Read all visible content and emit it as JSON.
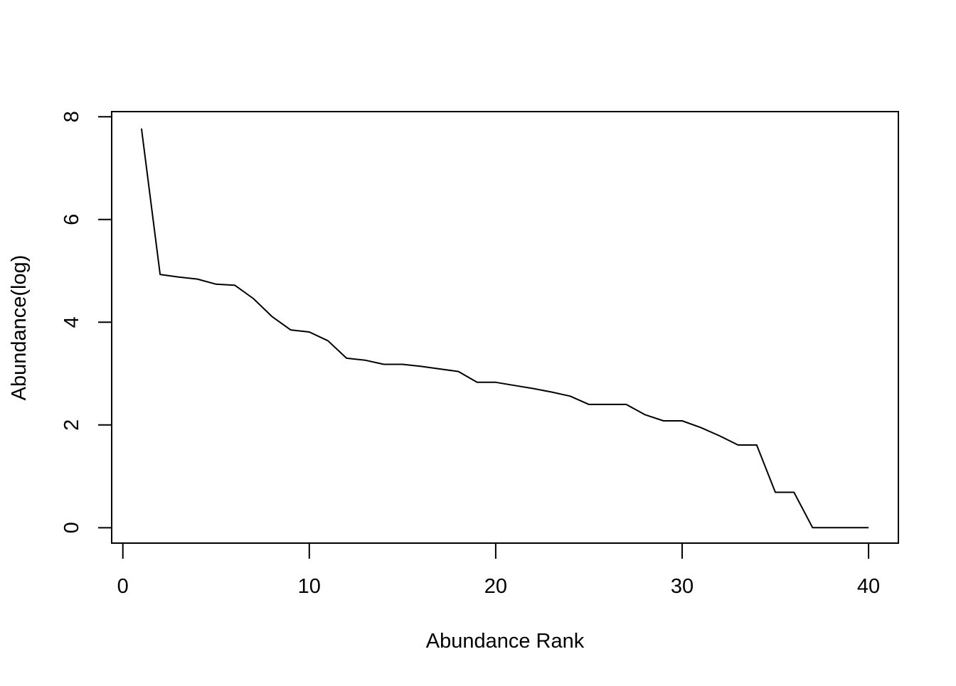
{
  "chart_data": {
    "type": "line",
    "title": "",
    "xlabel": "Abundance Rank",
    "ylabel": "Abundance(log)",
    "xlim": [
      -0.6,
      41.6
    ],
    "ylim": [
      -0.3,
      8.1
    ],
    "x_ticks": [
      0,
      10,
      20,
      30,
      40
    ],
    "y_ticks": [
      0,
      2,
      4,
      6,
      8
    ],
    "grid": false,
    "legend": "none",
    "line_color": "#000000",
    "series": [
      {
        "x": [
          1,
          2,
          3,
          4,
          5,
          6,
          7,
          8,
          9,
          10,
          11,
          12,
          13,
          14,
          15,
          16,
          17,
          18,
          19,
          20,
          21,
          22,
          23,
          24,
          25,
          26,
          27,
          28,
          29,
          30,
          31,
          32,
          33,
          34,
          35,
          36,
          37,
          38,
          39,
          40
        ],
        "values": [
          7.77,
          4.93,
          4.88,
          4.84,
          4.74,
          4.72,
          4.46,
          4.11,
          3.85,
          3.81,
          3.64,
          3.3,
          3.26,
          3.18,
          3.18,
          3.14,
          3.09,
          3.04,
          2.83,
          2.83,
          2.77,
          2.71,
          2.64,
          2.56,
          2.4,
          2.4,
          2.4,
          2.2,
          2.08,
          2.08,
          1.95,
          1.79,
          1.61,
          1.61,
          0.69,
          0.69,
          0.0,
          0.0,
          0.0,
          0.0
        ]
      }
    ]
  }
}
